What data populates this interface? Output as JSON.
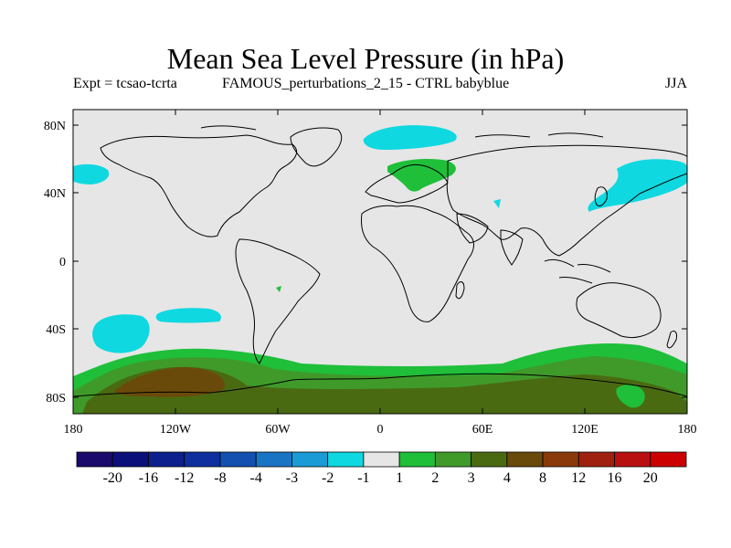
{
  "title": "Mean Sea Level Pressure (in hPa)",
  "subtitle_left": "Expt = tcsao-tcrta",
  "subtitle_mid": "FAMOUS_perturbations_2_15 - CTRL babyblue",
  "season": "JJA",
  "lat_ticks": [
    "80N",
    "40N",
    "0",
    "40S",
    "80S"
  ],
  "lon_ticks": [
    "180",
    "120W",
    "60W",
    "0",
    "60E",
    "120E",
    "180"
  ],
  "colorbar": {
    "labels": [
      "-20",
      "-16",
      "-12",
      "-8",
      "-4",
      "-3",
      "-2",
      "-1",
      "1",
      "2",
      "3",
      "4",
      "8",
      "12",
      "16",
      "20"
    ],
    "colors": [
      "#1a0a6b",
      "#0b0f7a",
      "#0d1f8c",
      "#0f2f9e",
      "#1450b0",
      "#1a74c4",
      "#1a9bd6",
      "#0fd8e0",
      "#e6e6e6",
      "#1fbf3a",
      "#3f9a2a",
      "#4a6a12",
      "#6a4a0a",
      "#8a3a0a",
      "#a02010",
      "#b81010",
      "#cc0000"
    ]
  },
  "colors": {
    "no_change": "#e6e6e6",
    "neg_1_2": "#0fd8e0",
    "pos_1_2": "#1fbf3a",
    "pos_2_3": "#3f9a2a",
    "pos_3_4": "#4a6a12",
    "pos_4_8": "#6a4a0a"
  }
}
